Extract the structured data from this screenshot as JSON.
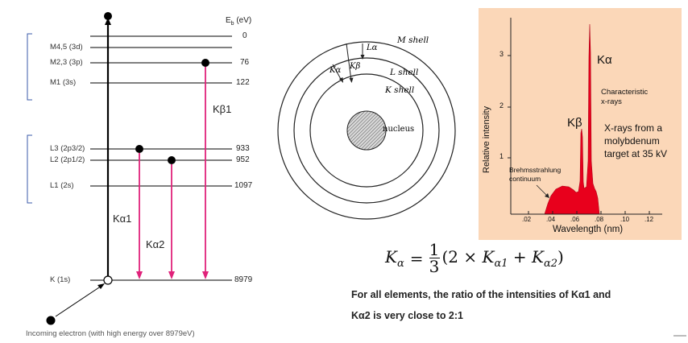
{
  "energy_diagram": {
    "axis_title": "E_b (eV)",
    "axis_title_main": "E",
    "axis_title_sub": "b",
    "axis_title_unit": " (eV)",
    "levels": [
      {
        "name": "",
        "value": "0"
      },
      {
        "name": "M4,5 (3d)",
        "value": ""
      },
      {
        "name": "M2,3 (3p)",
        "value": "76"
      },
      {
        "name": "M1 (3s)",
        "value": "122"
      },
      {
        "name": "L3 (2p3/2)",
        "value": "933"
      },
      {
        "name": "L2 (2p1/2)",
        "value": "952"
      },
      {
        "name": "L1 (2s)",
        "value": "1097"
      },
      {
        "name": "K (1s)",
        "value": "8979"
      }
    ],
    "transitions": [
      "Kβ1",
      "Kα1",
      "Kα2"
    ],
    "incoming_label": "Incoming electron (with high energy over 8979eV)"
  },
  "shell_diagram": {
    "shells": [
      "M shell",
      "L shell",
      "K shell"
    ],
    "nucleus_label": "nucleus",
    "transitions": [
      "Lα",
      "Kα",
      "Kβ"
    ]
  },
  "spectrum": {
    "ylabel": "Relative intensity",
    "xlabel": "Wavelength (nm)",
    "y_ticks": [
      "1",
      "2",
      "3"
    ],
    "x_ticks": [
      ".02",
      ".04",
      ".06",
      ".08",
      ".10",
      ".12"
    ],
    "peak_ka": "Kα",
    "peak_kb": "Kβ",
    "characteristic_label": "Characteristic x-rays",
    "characteristic_line1": "Characteristic",
    "characteristic_line2": "x-rays",
    "target_line1": "X-rays from a",
    "target_line2": "molybdenum",
    "target_line3": "target at 35 kV",
    "continuum_line1": "Brehmsstrahlung",
    "continuum_line2": "continuum",
    "colors": {
      "panel": "#fbd7b8",
      "fill": "#e8001c"
    }
  },
  "formula": {
    "text": "Kα = 1/3 (2 × Kα1 + Kα2)",
    "lhs_K": "K",
    "lhs_sub": "α",
    "eq": "=",
    "num": "1",
    "den": "3",
    "open": "(2 × ",
    "k1": "K",
    "k1_sub": "α1",
    "plus": " + ",
    "k2": "K",
    "k2_sub": "α2",
    "close": ")"
  },
  "notes": {
    "line1": "For all elements, the ratio of the intensities of Kα1 and",
    "line2": "Kα2 is very close to 2:1"
  },
  "colors": {
    "transition_arrow": "#e0227a",
    "electron": "#000000"
  }
}
